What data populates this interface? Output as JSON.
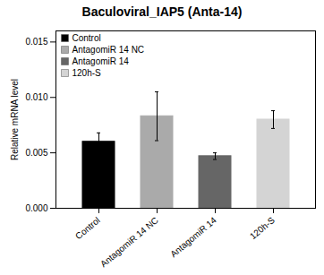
{
  "chart_data": {
    "type": "bar",
    "title": "Baculoviral_IAP5 (Anta-14)",
    "ylabel": "Relative mRNA level",
    "categories": [
      "Control",
      "AntagomiR 14 NC",
      "AntagomiR 14",
      "120h-S"
    ],
    "values": [
      0.006,
      0.0083,
      0.0047,
      0.008
    ],
    "errors": [
      0.0008,
      0.0022,
      0.0003,
      0.0008
    ],
    "colors": [
      "#000000",
      "#aaaaaa",
      "#666666",
      "#d4d4d4"
    ],
    "ylim": [
      0,
      0.016
    ],
    "yticks": [
      {
        "value": 0,
        "label": "0.000"
      },
      0.005,
      {
        "value": 0.01,
        "label": "0.010"
      },
      {
        "value": 0.015,
        "label": "0.015"
      }
    ],
    "legend": "upper left"
  }
}
